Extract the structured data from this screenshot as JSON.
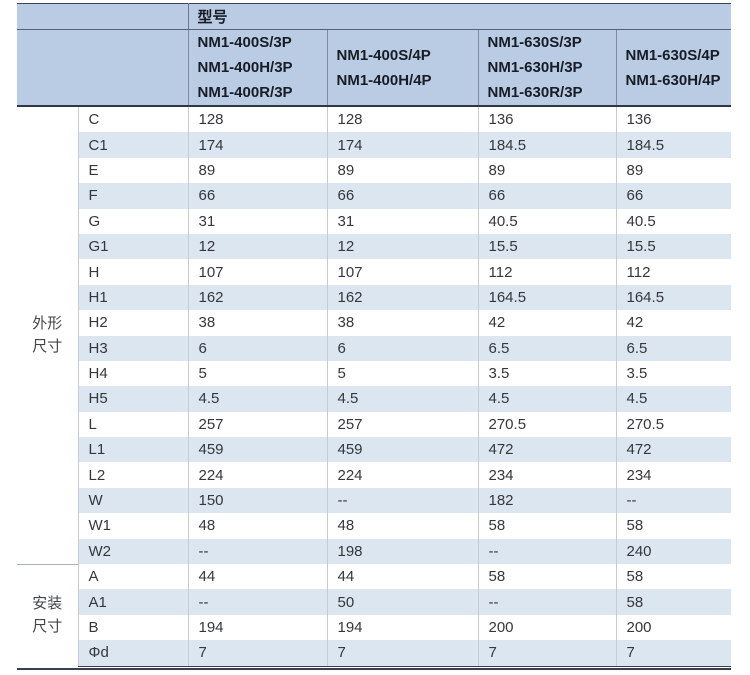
{
  "table": {
    "header": {
      "model_label": "型号",
      "columns": [
        {
          "lines": [
            "NM1-400S/3P",
            "NM1-400H/3P",
            "NM1-400R/3P"
          ]
        },
        {
          "lines": [
            "NM1-400S/4P",
            "NM1-400H/4P"
          ]
        },
        {
          "lines": [
            "NM1-630S/3P",
            "NM1-630H/3P",
            "NM1-630R/3P"
          ]
        },
        {
          "lines": [
            "NM1-630S/4P",
            "NM1-630H/4P"
          ]
        }
      ]
    },
    "groups": [
      {
        "label": "外形尺寸",
        "label_lines": [
          "外形",
          "尺寸"
        ],
        "rows": [
          {
            "name": "C",
            "values": [
              "128",
              "128",
              "136",
              "136"
            ]
          },
          {
            "name": "C1",
            "values": [
              "174",
              "174",
              "184.5",
              "184.5"
            ]
          },
          {
            "name": "E",
            "values": [
              "89",
              "89",
              "89",
              "89"
            ]
          },
          {
            "name": "F",
            "values": [
              "66",
              "66",
              "66",
              "66"
            ]
          },
          {
            "name": "G",
            "values": [
              "31",
              "31",
              "40.5",
              "40.5"
            ]
          },
          {
            "name": "G1",
            "values": [
              "12",
              "12",
              "15.5",
              "15.5"
            ]
          },
          {
            "name": "H",
            "values": [
              "107",
              "107",
              "112",
              "112"
            ]
          },
          {
            "name": "H1",
            "values": [
              "162",
              "162",
              "164.5",
              "164.5"
            ]
          },
          {
            "name": "H2",
            "values": [
              "38",
              "38",
              "42",
              "42"
            ]
          },
          {
            "name": "H3",
            "values": [
              "6",
              "6",
              "6.5",
              "6.5"
            ]
          },
          {
            "name": "H4",
            "values": [
              "5",
              "5",
              "3.5",
              "3.5"
            ]
          },
          {
            "name": "H5",
            "values": [
              "4.5",
              "4.5",
              "4.5",
              "4.5"
            ]
          },
          {
            "name": "L",
            "values": [
              "257",
              "257",
              "270.5",
              "270.5"
            ]
          },
          {
            "name": "L1",
            "values": [
              "459",
              "459",
              "472",
              "472"
            ]
          },
          {
            "name": "L2",
            "values": [
              "224",
              "224",
              "234",
              "234"
            ]
          },
          {
            "name": "W",
            "values": [
              "150",
              "--",
              "182",
              "--"
            ]
          },
          {
            "name": "W1",
            "values": [
              "48",
              "48",
              "58",
              "58"
            ]
          },
          {
            "name": "W2",
            "values": [
              "--",
              "198",
              "--",
              "240"
            ]
          }
        ]
      },
      {
        "label": "安装尺寸",
        "label_lines": [
          "安装",
          "尺寸"
        ],
        "rows": [
          {
            "name": "A",
            "values": [
              "44",
              "44",
              "58",
              "58"
            ]
          },
          {
            "name": "A1",
            "values": [
              "--",
              "50",
              "--",
              "58"
            ]
          },
          {
            "name": "B",
            "values": [
              "194",
              "194",
              "200",
              "200"
            ]
          },
          {
            "name": "Φd",
            "values": [
              "7",
              "7",
              "7",
              "7"
            ]
          }
        ]
      }
    ]
  },
  "colors": {
    "header_bg": "#b9cce4",
    "stripe_bg": "#dce6f1",
    "heavy_line": "#2f3747",
    "light_line": "#c5cbd6",
    "header_text": "#171c26",
    "body_text": "#34373c"
  }
}
